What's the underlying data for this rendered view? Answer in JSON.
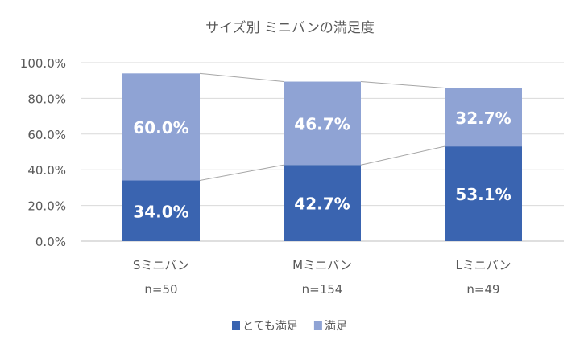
{
  "chart_data": {
    "type": "bar",
    "stacked": true,
    "title": "サイズ別 ミニバンの満足度",
    "categories": [
      "Sミニバン",
      "Mミニバン",
      "Lミニバン"
    ],
    "sample_sizes": [
      "n=50",
      "n=154",
      "n=49"
    ],
    "series": [
      {
        "name": "とても満足",
        "values": [
          34.0,
          42.7,
          53.1
        ],
        "labels": [
          "34.0%",
          "42.7%",
          "53.1%"
        ],
        "color": "#3a64b0"
      },
      {
        "name": "満足",
        "values": [
          60.0,
          46.7,
          32.7
        ],
        "labels": [
          "60.0%",
          "46.7%",
          "32.7%"
        ],
        "color": "#8fa3d4"
      }
    ],
    "y_ticks": [
      "0.0%",
      "20.0%",
      "40.0%",
      "60.0%",
      "80.0%",
      "100.0%"
    ],
    "ylim": [
      0,
      100
    ],
    "legend_position": "bottom",
    "grid": true,
    "series_lines": true
  }
}
